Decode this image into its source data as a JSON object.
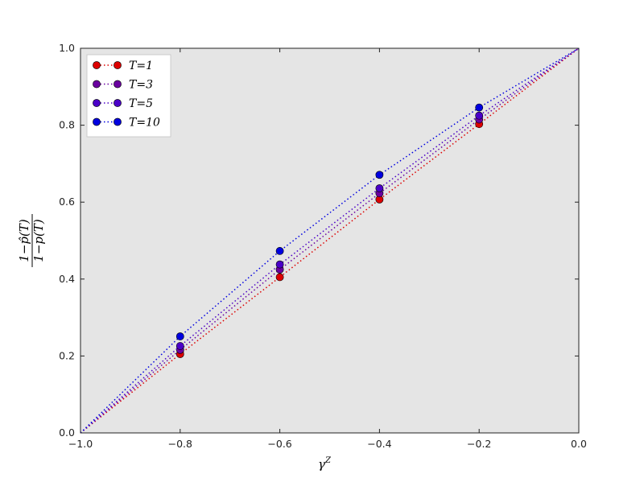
{
  "chart_data": {
    "type": "line",
    "x": [
      -1.0,
      -0.8,
      -0.6,
      -0.4,
      -0.2,
      0.0
    ],
    "xlim": [
      -1.0,
      0.0
    ],
    "ylim": [
      0.0,
      1.0
    ],
    "xticks": [
      "−1.0",
      "−0.8",
      "−0.6",
      "−0.4",
      "−0.2",
      "0.0"
    ],
    "yticks": [
      "0.0",
      "0.2",
      "0.4",
      "0.6",
      "0.8",
      "1.0"
    ],
    "xlabel": "γ",
    "xlabel_superscript": "Z",
    "ylabel_numerator": "1−p̂(T)",
    "ylabel_denominator": "1−p(T)",
    "grid": false,
    "legend_position": "top-left",
    "background_color": "#e5e5e5",
    "series": [
      {
        "name": "T=1",
        "color": "#dd0000",
        "values": [
          0.0,
          0.205,
          0.405,
          0.607,
          0.803,
          1.0
        ]
      },
      {
        "name": "T=3",
        "color": "#6a00a0",
        "values": [
          0.0,
          0.216,
          0.425,
          0.623,
          0.815,
          1.0
        ]
      },
      {
        "name": "T=5",
        "color": "#4a00c8",
        "values": [
          0.0,
          0.226,
          0.438,
          0.636,
          0.825,
          1.0
        ]
      },
      {
        "name": "T=10",
        "color": "#0000e0",
        "values": [
          0.0,
          0.251,
          0.473,
          0.671,
          0.846,
          1.0
        ]
      }
    ]
  }
}
